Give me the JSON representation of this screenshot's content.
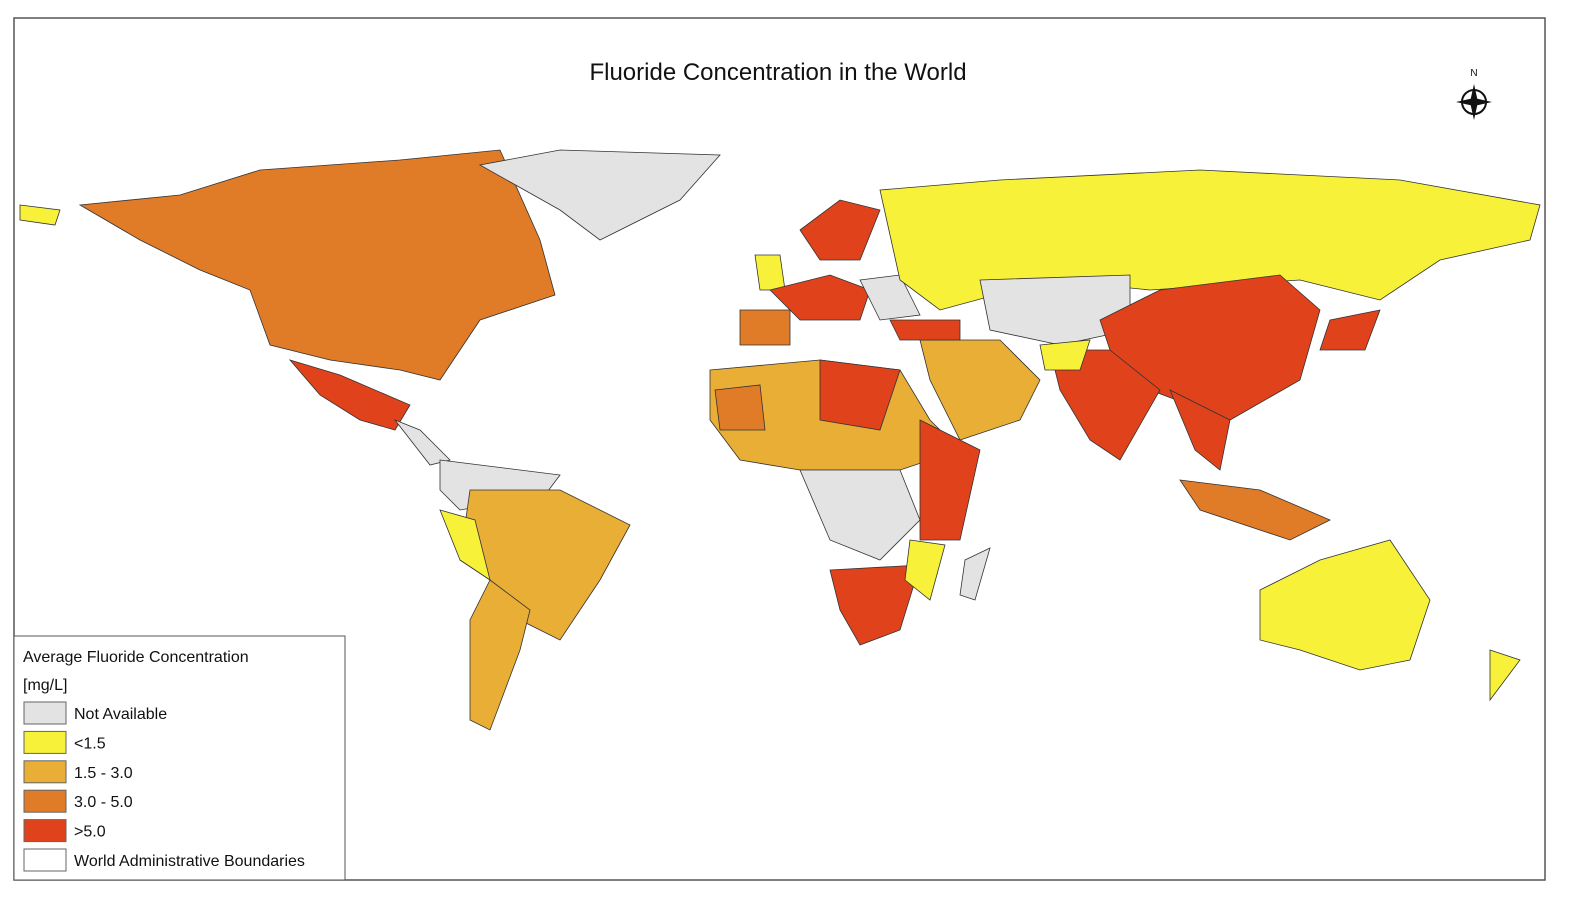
{
  "title": "Fluoride Concentration in the World",
  "north": "N",
  "legend": {
    "title": "Average Fluoride Concentration",
    "unit": "[mg/L]",
    "items": [
      {
        "label": "Not Available",
        "color": "#e3e3e3"
      },
      {
        "label": "<1.5",
        "color": "#f7f139"
      },
      {
        "label": "1.5 - 3.0",
        "color": "#e8ae36"
      },
      {
        "label": "3.0 - 5.0",
        "color": "#e07b27"
      },
      {
        "label": ">5.0",
        "color": "#e0421c"
      },
      {
        "label": "World Administrative Boundaries",
        "color": "#ffffff"
      }
    ]
  }
}
